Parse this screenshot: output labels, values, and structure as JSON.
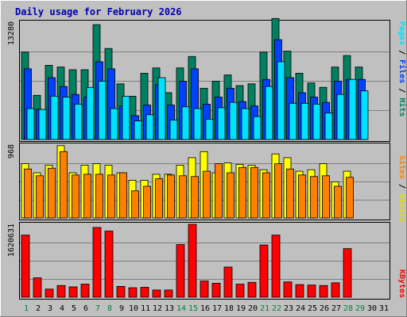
{
  "chart_data": {
    "type": "bar",
    "title": "Daily usage for February 2026",
    "days": [
      "1",
      "2",
      "3",
      "4",
      "5",
      "6",
      "7",
      "8",
      "9",
      "10",
      "11",
      "12",
      "13",
      "14",
      "15",
      "16",
      "17",
      "18",
      "19",
      "20",
      "21",
      "22",
      "23",
      "24",
      "25",
      "26",
      "27",
      "28",
      "29",
      "30",
      "31"
    ],
    "weekend_days": [
      1,
      7,
      8,
      14,
      15,
      21,
      22,
      28,
      29
    ],
    "panels": [
      {
        "id": "hits_files_pages",
        "max_label": "13280",
        "ymax": 13280,
        "legend": [
          "Pages",
          "Files",
          "Hits"
        ],
        "series": [
          {
            "name": "Hits",
            "color": "#008060",
            "values": [
              9900,
              5000,
              8400,
              8200,
              7900,
              7900,
              13000,
              10300,
              6300,
              4900,
              7500,
              8100,
              5300,
              8100,
              9400,
              5800,
              6600,
              7300,
              6100,
              6300,
              9900,
              13700,
              10000,
              7500,
              6400,
              5900,
              8200,
              9500,
              8200,
              0,
              0
            ]
          },
          {
            "name": "Files",
            "color": "#0040ff",
            "values": [
              8000,
              3400,
              7000,
              6000,
              5100,
              4800,
              8800,
              8000,
              3800,
              2700,
              3900,
              6200,
              3900,
              6600,
              8000,
              4000,
              4800,
              5800,
              4300,
              3800,
              6800,
              11300,
              7000,
              5300,
              4800,
              4200,
              6600,
              6800,
              6800,
              0,
              0
            ]
          },
          {
            "name": "Pages",
            "color": "#00e0ff",
            "values": [
              3500,
              3400,
              4900,
              4800,
              4000,
              5900,
              6600,
              3500,
              4900,
              2100,
              2800,
              7000,
              2200,
              3700,
              3500,
              2300,
              3600,
              4200,
              3500,
              2600,
              6000,
              8800,
              4100,
              4100,
              4000,
              3000,
              5100,
              6800,
              5500,
              0,
              0
            ]
          }
        ]
      },
      {
        "id": "visits_sites",
        "max_label": "968",
        "ymax": 968,
        "legend": [
          "Sites",
          "Visits"
        ],
        "series": [
          {
            "name": "Visits",
            "color": "#ffff00",
            "values": [
              720,
              600,
              700,
              960,
              600,
              700,
              720,
              700,
              600,
              500,
              500,
              580,
              580,
              700,
              800,
              880,
              600,
              730,
              710,
              700,
              640,
              850,
              800,
              620,
              640,
              720,
              480,
              620,
              0,
              0,
              0
            ]
          },
          {
            "name": "Sites",
            "color": "#ff8000",
            "values": [
              650,
              560,
              660,
              880,
              570,
              580,
              580,
              570,
              600,
              360,
              420,
              520,
              570,
              560,
              550,
              620,
              720,
              600,
              670,
              670,
              600,
              720,
              650,
              570,
              550,
              560,
              420,
              540,
              0,
              0,
              0
            ]
          }
        ]
      },
      {
        "id": "kbytes",
        "max_label": "1620631",
        "ymax": 1620631,
        "legend": [
          "KBytes"
        ],
        "series": [
          {
            "name": "KBytes",
            "color": "#ff0000",
            "values": [
              1380000,
              430000,
              180000,
              260000,
              230000,
              290000,
              1550000,
              1470000,
              240000,
              210000,
              220000,
              160000,
              160000,
              1170000,
              1620631,
              360000,
              310000,
              670000,
              290000,
              330000,
              1160000,
              1380000,
              340000,
              280000,
              270000,
              260000,
              320000,
              1080000,
              0,
              0,
              0
            ]
          }
        ]
      }
    ]
  }
}
